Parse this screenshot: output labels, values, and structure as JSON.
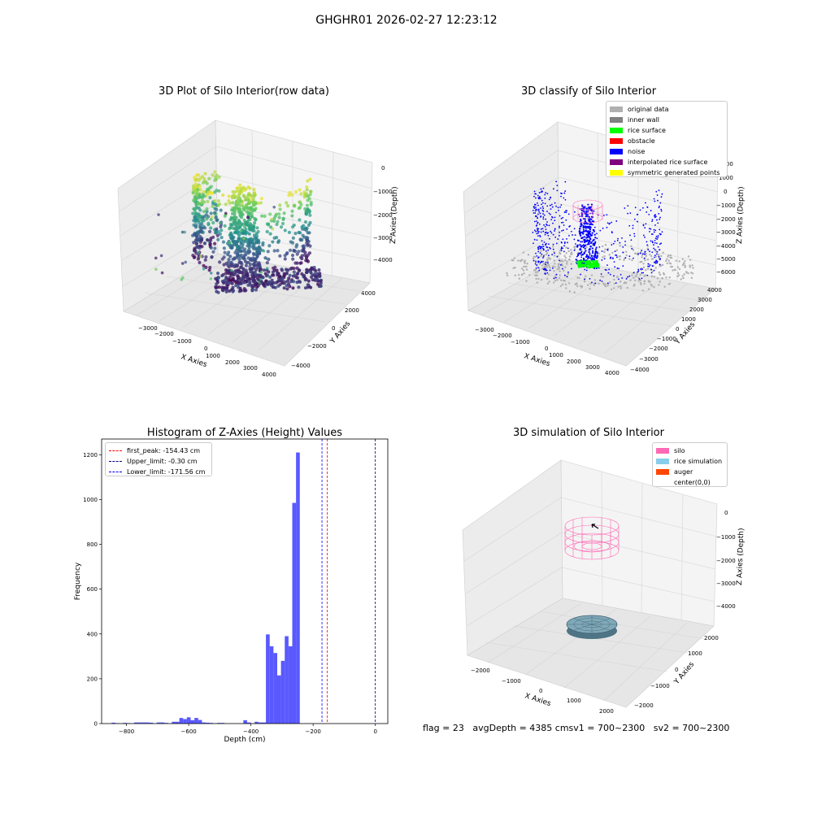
{
  "suptitle": "GHGHR01 2026-02-27 12:23:12",
  "footer": {
    "flag": "flag = 23",
    "avg": "avgDepth = 4385 cmsv1 = 700~2300",
    "sv2": "sv2 = 700~2300"
  },
  "colors": {
    "histogram_bar": "#5050ff",
    "first_peak": "#ff0000",
    "upper_limit": "#00008b",
    "lower_limit": "#0000ff",
    "pane": "#f2f2f2",
    "grid": "#d9d9d9"
  },
  "chart_data": [
    {
      "type": "scatter",
      "subtype": "3d-scatter",
      "title": "3D Plot of Silo Interior(row data)",
      "xlabel": "X Axies",
      "ylabel": "Y Axies",
      "zlabel": "Z Axies (Depth)",
      "xticks": [
        "−3000",
        "−2000",
        "−1000",
        "0",
        "1000",
        "2000",
        "3000",
        "4000"
      ],
      "yticks": [
        "4000",
        "2000",
        "0",
        "−2000",
        "−4000"
      ],
      "zticks": [
        "0",
        "−1000",
        "−2000",
        "−3000",
        "−4000"
      ],
      "colormap": "viridis"
    },
    {
      "type": "scatter",
      "subtype": "3d-scatter",
      "title": "3D classify of Silo Interior",
      "xlabel": "X Axies",
      "ylabel": "Y Axies",
      "zlabel": "Z Axies (Depth)",
      "xticks": [
        "−3000",
        "−2000",
        "−1000",
        "0",
        "1000",
        "2000",
        "3000",
        "4000"
      ],
      "yticks": [
        "4000",
        "3000",
        "2000",
        "1000",
        "0",
        "−1000",
        "−2000",
        "−3000",
        "−4000"
      ],
      "zticks": [
        "2000",
        "1000",
        "0",
        "−1000",
        "−2000",
        "−3000",
        "−4000",
        "−5000",
        "−6000"
      ],
      "legend": [
        {
          "label": "original data",
          "color": "#b0b0b0"
        },
        {
          "label": "inner wall",
          "color": "#808080"
        },
        {
          "label": "rice surface",
          "color": "#00ff00"
        },
        {
          "label": "obstacle",
          "color": "#ff0000"
        },
        {
          "label": "noise",
          "color": "#0000ff"
        },
        {
          "label": "interpolated rice surface",
          "color": "#800080"
        },
        {
          "label": "symmetric generated points",
          "color": "#ffff00"
        }
      ],
      "legend_position": "top-right"
    },
    {
      "type": "bar",
      "subtype": "histogram",
      "title": "Histogram of Z-Axies (Height) Values",
      "xlabel": "Depth (cm)",
      "ylabel": "Frequency",
      "xlim": [
        -880,
        40
      ],
      "ylim": [
        0,
        1270
      ],
      "xticks": [
        -800,
        -600,
        -400,
        -200,
        0
      ],
      "yticks": [
        0,
        200,
        400,
        600,
        800,
        1000,
        1200
      ],
      "bin_edges_start": -860,
      "bin_width": 12.1,
      "values": [
        0,
        4,
        2,
        0,
        3,
        2,
        0,
        5,
        5,
        5,
        5,
        4,
        0,
        5,
        5,
        3,
        0,
        8,
        8,
        25,
        20,
        28,
        15,
        25,
        16,
        5,
        4,
        3,
        0,
        3,
        3,
        0,
        0,
        0,
        0,
        0,
        15,
        5,
        0,
        8,
        5,
        5,
        398,
        345,
        315,
        215,
        280,
        390,
        345,
        985,
        1210
      ],
      "reference_lines": [
        {
          "label": "first_peak: -154.43 cm",
          "x": -154.43,
          "color": "#ff0000"
        },
        {
          "label": "Upper_limit: -0.30 cm",
          "x": -0.3,
          "color": "#00008b"
        },
        {
          "label": "Lower_limit: -171.56 cm",
          "x": -171.56,
          "color": "#0000ff"
        }
      ],
      "legend_position": "top-left"
    },
    {
      "type": "scatter",
      "subtype": "3d-simulation",
      "title": "3D simulation of Silo Interior",
      "xlabel": "X Axies",
      "ylabel": "Y Axies",
      "zlabel": "Z Axies (Depth)",
      "xticks": [
        "−2000",
        "−1000",
        "0",
        "1000",
        "2000"
      ],
      "yticks": [
        "2000",
        "1000",
        "0",
        "−1000",
        "−2000"
      ],
      "zticks": [
        "0",
        "−1000",
        "−2000",
        "−3000",
        "−4000"
      ],
      "legend": [
        {
          "label": "silo",
          "color": "#ff69b4"
        },
        {
          "label": "rice simulation",
          "color": "#87ceeb"
        },
        {
          "label": "auger",
          "color": "#ff4500"
        },
        {
          "label": "center(0,0)",
          "color": "#ffffff"
        }
      ],
      "legend_position": "top-right"
    }
  ]
}
